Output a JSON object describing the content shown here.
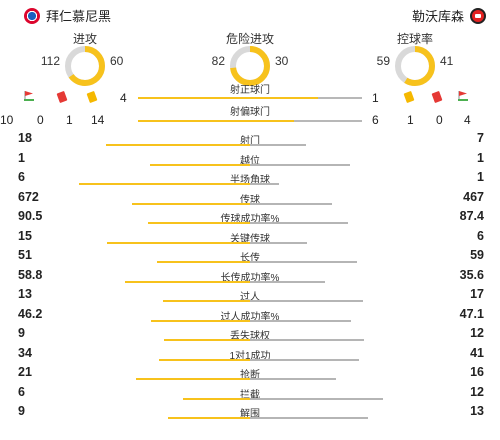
{
  "header": {
    "home_team": "拜仁慕尼黑",
    "away_team": "勒沃库森"
  },
  "circle_stats": [
    {
      "label": "进攻",
      "home": 112,
      "away": 60
    },
    {
      "label": "危险进攻",
      "home": 82,
      "away": 30
    },
    {
      "label": "控球率",
      "home": 59,
      "away": 41
    }
  ],
  "shots_on_target": {
    "label": "射正球门",
    "home": "4",
    "away": "1"
  },
  "shots_off_target": {
    "label": "射偏球门"
  },
  "extra_counts": {
    "home": [
      "10",
      "0",
      "1",
      "14"
    ],
    "away": [
      "6",
      "1",
      "0",
      "4"
    ]
  },
  "stats": [
    {
      "label": "射门",
      "home": "18",
      "away": "7",
      "h": 18,
      "a": 7
    },
    {
      "label": "越位",
      "home": "1",
      "away": "1",
      "h": 1,
      "a": 1
    },
    {
      "label": "半场角球",
      "home": "6",
      "away": "1",
      "h": 6,
      "a": 1
    },
    {
      "label": "传球",
      "home": "672",
      "away": "467",
      "h": 672,
      "a": 467
    },
    {
      "label": "传球成功率%",
      "home": "90.5",
      "away": "87.4",
      "h": 90.5,
      "a": 87.4
    },
    {
      "label": "关键传球",
      "home": "15",
      "away": "6",
      "h": 15,
      "a": 6
    },
    {
      "label": "长传",
      "home": "51",
      "away": "59",
      "h": 51,
      "a": 59
    },
    {
      "label": "长传成功率%",
      "home": "58.8",
      "away": "35.6",
      "h": 58.8,
      "a": 35.6
    },
    {
      "label": "过人",
      "home": "13",
      "away": "17",
      "h": 13,
      "a": 17
    },
    {
      "label": "过人成功率%",
      "home": "46.2",
      "away": "47.1",
      "h": 46.2,
      "a": 47.1
    },
    {
      "label": "丢失球权",
      "home": "9",
      "away": "12",
      "h": 9,
      "a": 12
    },
    {
      "label": "1对1成功",
      "home": "34",
      "away": "41",
      "h": 34,
      "a": 41
    },
    {
      "label": "抢断",
      "home": "21",
      "away": "16",
      "h": 21,
      "a": 16
    },
    {
      "label": "拦截",
      "home": "6",
      "away": "12",
      "h": 6,
      "a": 12
    },
    {
      "label": "解围",
      "home": "9",
      "away": "13",
      "h": 9,
      "a": 13
    }
  ],
  "colors": {
    "home": "#f7c21c",
    "away": "#b5b5b5"
  }
}
